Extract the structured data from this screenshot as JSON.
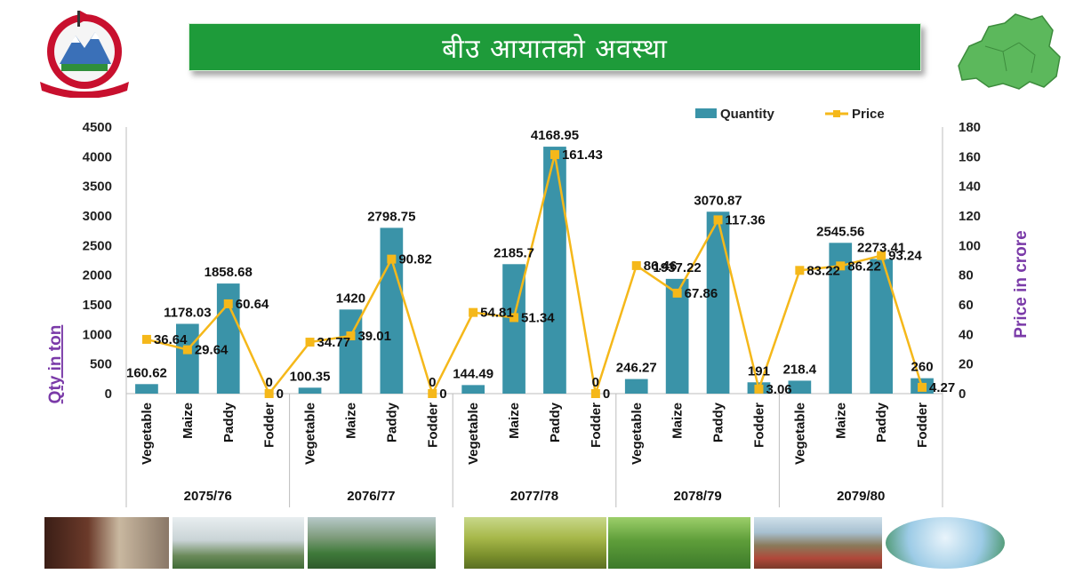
{
  "header": {
    "title": "बीउ आयातको अवस्था"
  },
  "emblem": {
    "icon": "nepal-emblem-icon"
  },
  "map": {
    "icon": "province-map-icon",
    "color": "#5cb85c"
  },
  "chart_data": {
    "type": "bar",
    "combo": "bar+line",
    "ylabel": "Qty in ton",
    "y2label": "Price in crore",
    "ylim": [
      0,
      4500
    ],
    "y2lim": [
      0,
      180
    ],
    "yticks": [
      "0",
      "500",
      "1000",
      "1500",
      "2000",
      "2500",
      "3000",
      "3500",
      "4000",
      "4500"
    ],
    "y2ticks": [
      "0",
      "20",
      "40",
      "60",
      "80",
      "100",
      "120",
      "140",
      "160",
      "180"
    ],
    "legend_position": "top-right",
    "legend": {
      "quantity": "Quantity",
      "price": "Price"
    },
    "colors": {
      "quantity": "#3a93a8",
      "price": "#f5b81a"
    },
    "groups": [
      "2075/76",
      "2076/77",
      "2077/78",
      "2078/79",
      "2079/80"
    ],
    "categories": [
      "Vegetable",
      "Maize",
      "Paddy",
      "Fodder",
      "Vegetable",
      "Maize",
      "Paddy",
      "Fodder",
      "Vegetable",
      "Maize",
      "Paddy",
      "Fodder",
      "Vegetable",
      "Maize",
      "Paddy",
      "Fodder",
      "Vegetable",
      "Maize",
      "Paddy",
      "Fodder"
    ],
    "series": [
      {
        "name": "Quantity",
        "type": "bar",
        "axis": "left",
        "values": [
          160.62,
          1178.03,
          1858.68,
          0,
          100.35,
          1420,
          2798.75,
          0,
          144.49,
          2185.7,
          4168.95,
          0,
          246.27,
          1937.22,
          3070.87,
          191,
          218.4,
          2545.56,
          2273.41,
          260
        ],
        "labels": [
          "160.62",
          "1178.03",
          "1858.68",
          "0",
          "100.35",
          "1420",
          "2798.75",
          "0",
          "144.49",
          "2185.7",
          "4168.95",
          "0",
          "246.27",
          "1937.22",
          "3070.87",
          "191",
          "218.4",
          "2545.56",
          "2273.41",
          "260"
        ]
      },
      {
        "name": "Price",
        "type": "line",
        "axis": "right",
        "values": [
          36.64,
          29.64,
          60.64,
          0,
          34.77,
          39.01,
          90.82,
          0,
          54.81,
          51.34,
          161.43,
          0,
          86.46,
          67.86,
          117.36,
          3.06,
          83.22,
          86.22,
          93.24,
          4.27
        ],
        "labels": [
          "36.64",
          "29.64",
          "60.64",
          "0",
          "34.77",
          "39.01",
          "90.82",
          "0",
          "54.81",
          "51.34",
          "161.43",
          "0",
          "86.46",
          "67.86",
          "117.36",
          "3.06",
          "83.22",
          "86.22",
          "93.24",
          "4.27"
        ]
      }
    ]
  },
  "photos": {
    "items": [
      "mushroom-farming-photo",
      "greenhouse-photo",
      "greenhouse-seedlings-photo",
      "paddy-field-photo",
      "maize-field-photo",
      "tractor-field-photo",
      "agri-tech-icons-photo"
    ]
  }
}
